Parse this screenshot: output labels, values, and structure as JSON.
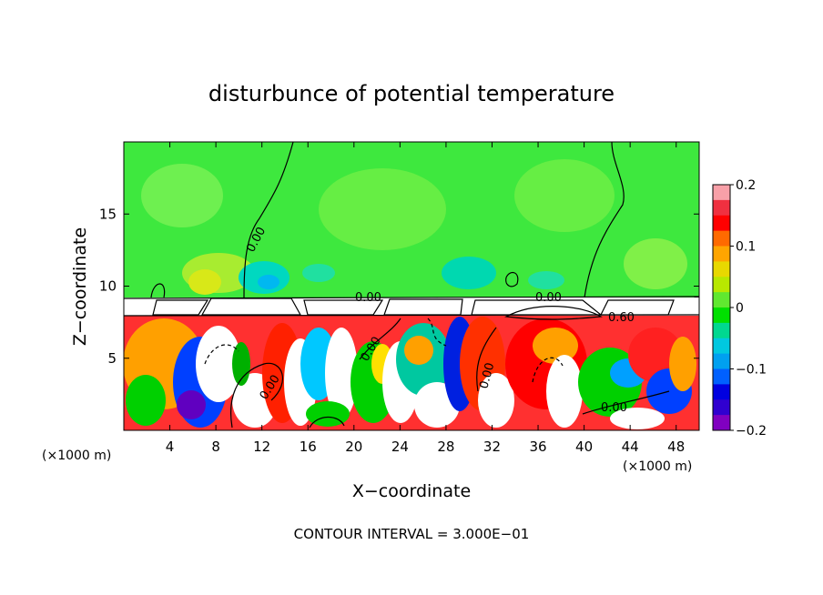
{
  "chart_data": {
    "type": "heatmap",
    "title": "disturbunce of potential temperature",
    "xlabel": "X−coordinate",
    "ylabel": "Z−coordinate",
    "x_unit_left": "(×1000 m)",
    "x_unit_right": "(×1000 m)",
    "xlim": [
      0,
      50
    ],
    "ylim": [
      0,
      20
    ],
    "x_ticks": [
      "4",
      "8",
      "12",
      "16",
      "20",
      "24",
      "28",
      "32",
      "36",
      "40",
      "44",
      "48"
    ],
    "y_ticks": [
      "5",
      "10",
      "15"
    ],
    "colorbar": {
      "range": [
        -0.2,
        0.2
      ],
      "tick_labels": [
        "0.2",
        "0.1",
        "0",
        "−0.1",
        "−0.2"
      ],
      "colors": [
        "#f8a0a8",
        "#f03040",
        "#ff0000",
        "#ff6a00",
        "#ffa500",
        "#e8d800",
        "#b8e800",
        "#60e830",
        "#00e000",
        "#00d890",
        "#00c8e0",
        "#00a0f0",
        "#0060ff",
        "#0000e0",
        "#3000d0",
        "#8000c0"
      ]
    },
    "contour_labels": [
      "0.00",
      "0.00",
      "0.00",
      "0.00",
      "0.00",
      "0.00",
      "0.60",
      "0.00"
    ],
    "contour_interval_text": "CONTOUR INTERVAL = 3.000E−01"
  }
}
